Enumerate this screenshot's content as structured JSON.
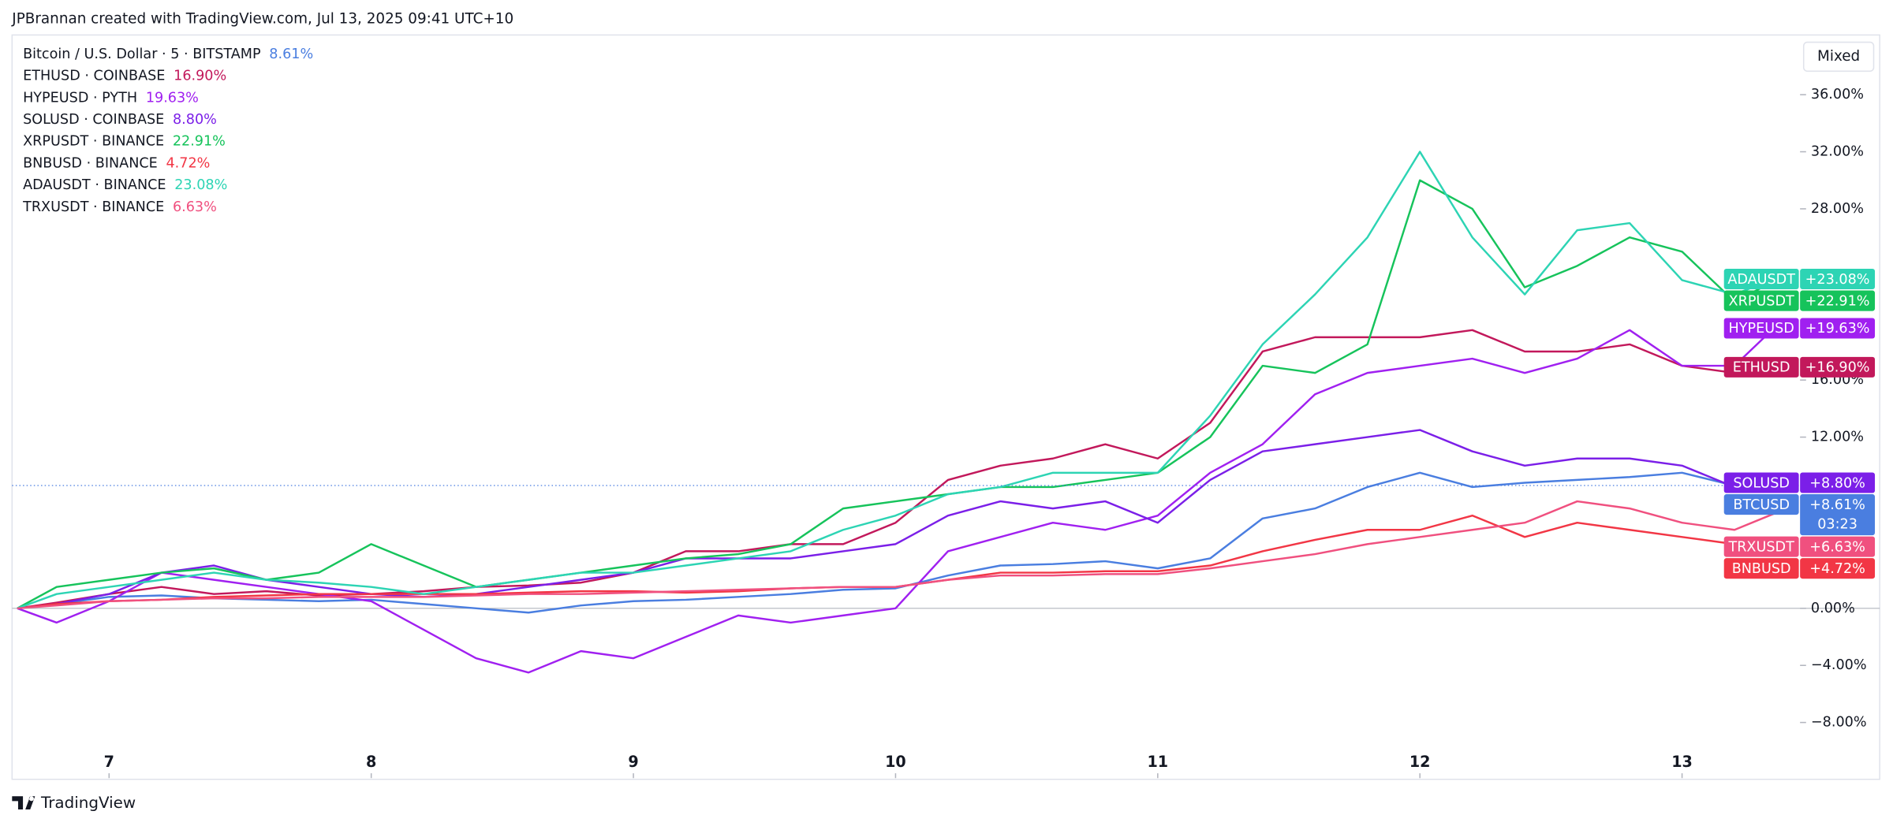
{
  "header": "JPBrannan created with TradingView.com, Jul 13, 2025 09:41 UTC+10",
  "scale_button": "Mixed",
  "brand": "TradingView",
  "chart_data": {
    "type": "line",
    "x": [
      6.65,
      6.8,
      7.0,
      7.2,
      7.4,
      7.6,
      7.8,
      8.0,
      8.2,
      8.4,
      8.6,
      8.8,
      9.0,
      9.2,
      9.4,
      9.6,
      9.8,
      10.0,
      10.2,
      10.4,
      10.6,
      10.8,
      11.0,
      11.2,
      11.4,
      11.6,
      11.8,
      12.0,
      12.2,
      12.4,
      12.6,
      12.8,
      13.0,
      13.2,
      13.35
    ],
    "xlim": [
      6.63,
      13.45
    ],
    "xticks": [
      7,
      8,
      9,
      10,
      11,
      12,
      13
    ],
    "ylim": [
      -11.9,
      40.1
    ],
    "yticks": [
      {
        "value": -8,
        "label": "−8.00%"
      },
      {
        "value": -4,
        "label": "−4.00%"
      },
      {
        "value": 0,
        "label": "0.00%"
      },
      {
        "value": 12,
        "label": "12.00%"
      },
      {
        "value": 16,
        "label": "16.00%"
      },
      {
        "value": 28,
        "label": "28.00%"
      },
      {
        "value": 32,
        "label": "32.00%"
      },
      {
        "value": 36,
        "label": "36.00%"
      }
    ],
    "series": [
      {
        "name": "Bitcoin / U.S. Dollar · 5 · BITSTAMP",
        "ticker": "BTCUSD",
        "color": "#4a7ee0",
        "change": 8.61,
        "change_label": "8.61%",
        "badge_label": "+8.61%",
        "countdown": "03:23",
        "values": [
          0,
          0.3,
          0.8,
          0.9,
          0.7,
          0.6,
          0.5,
          0.6,
          0.3,
          0,
          -0.3,
          0.2,
          0.5,
          0.6,
          0.8,
          1.0,
          1.3,
          1.4,
          2.3,
          3.0,
          3.1,
          3.3,
          2.8,
          3.5,
          6.3,
          7.0,
          8.5,
          9.5,
          8.5,
          8.8,
          9.0,
          9.2,
          9.5,
          8.6,
          8.61
        ]
      },
      {
        "name": "ETHUSD · COINBASE",
        "ticker": "ETHUSD",
        "color": "#c2185b",
        "change": 16.9,
        "change_label": "16.90%",
        "badge_label": "+16.90%",
        "values": [
          0,
          0.4,
          1.0,
          1.5,
          1.0,
          1.2,
          0.9,
          1.0,
          1.2,
          1.5,
          1.6,
          1.8,
          2.5,
          4.0,
          4.0,
          4.5,
          4.5,
          6.0,
          9.0,
          10.0,
          10.5,
          11.5,
          10.5,
          13.0,
          18.0,
          19.0,
          19.0,
          19.0,
          19.5,
          18.0,
          18.0,
          18.5,
          17.0,
          16.5,
          16.9
        ]
      },
      {
        "name": "HYPEUSD · PYTH",
        "ticker": "HYPEUSD",
        "color": "#a020f0",
        "change": 19.63,
        "change_label": "19.63%",
        "badge_label": "+19.63%",
        "values": [
          0,
          -1.0,
          0.5,
          2.5,
          2.0,
          1.5,
          1.0,
          0.5,
          -1.5,
          -3.5,
          -4.5,
          -3.0,
          -3.5,
          -2.0,
          -0.5,
          -1.0,
          -0.5,
          0,
          4.0,
          5.0,
          6.0,
          5.5,
          6.5,
          9.5,
          11.5,
          15.0,
          16.5,
          17.0,
          17.5,
          16.5,
          17.5,
          19.5,
          17.0,
          17.0,
          19.63
        ]
      },
      {
        "name": "SOLUSD · COINBASE",
        "ticker": "SOLUSD",
        "color": "#7b1fe8",
        "change": 8.8,
        "change_label": "8.80%",
        "badge_label": "+8.80%",
        "values": [
          0,
          0.3,
          1.0,
          2.5,
          3.0,
          2.0,
          1.5,
          1.0,
          0.8,
          1.0,
          1.5,
          2.0,
          2.5,
          3.5,
          3.5,
          3.5,
          4.0,
          4.5,
          6.5,
          7.5,
          7.0,
          7.5,
          6.0,
          9.0,
          11.0,
          11.5,
          12.0,
          12.5,
          11.0,
          10.0,
          10.5,
          10.5,
          10.0,
          8.5,
          8.8
        ]
      },
      {
        "name": "XRPUSDT · BINANCE",
        "ticker": "XRPUSDT",
        "color": "#16c35b",
        "change": 22.91,
        "change_label": "22.91%",
        "badge_label": "+22.91%",
        "values": [
          0,
          1.5,
          2.0,
          2.5,
          2.8,
          2.0,
          2.5,
          4.5,
          3.0,
          1.5,
          2.0,
          2.5,
          3.0,
          3.5,
          3.8,
          4.5,
          7.0,
          7.5,
          8.0,
          8.5,
          8.5,
          9.0,
          9.5,
          12.0,
          17.0,
          16.5,
          18.5,
          30.0,
          28.0,
          22.5,
          24.0,
          26.0,
          25.0,
          21.5,
          22.91
        ]
      },
      {
        "name": "BNBUSD · BINANCE",
        "ticker": "BNBUSD",
        "color": "#f23645",
        "change": 4.72,
        "change_label": "4.72%",
        "badge_label": "+4.72%",
        "values": [
          0,
          0.3,
          0.5,
          0.6,
          0.8,
          0.9,
          1.0,
          1.0,
          1.0,
          1.0,
          1.1,
          1.2,
          1.2,
          1.1,
          1.2,
          1.4,
          1.5,
          1.5,
          2.0,
          2.5,
          2.5,
          2.6,
          2.6,
          3.0,
          4.0,
          4.8,
          5.5,
          5.5,
          6.5,
          5.0,
          6.0,
          5.5,
          5.0,
          4.5,
          4.72
        ]
      },
      {
        "name": "ADAUSDT · BINANCE",
        "ticker": "ADAUSDT",
        "color": "#2dd4b4",
        "change": 23.08,
        "change_label": "23.08%",
        "badge_label": "+23.08%",
        "values": [
          0,
          1.0,
          1.5,
          2.0,
          2.5,
          2.0,
          1.8,
          1.5,
          1.0,
          1.5,
          2.0,
          2.5,
          2.5,
          3.0,
          3.5,
          4.0,
          5.5,
          6.5,
          8.0,
          8.5,
          9.5,
          9.5,
          9.5,
          13.5,
          18.5,
          22.0,
          26.0,
          32.0,
          26.0,
          22.0,
          26.5,
          27.0,
          23.0,
          22.0,
          23.08
        ]
      },
      {
        "name": "TRXUSDT · BINANCE",
        "ticker": "TRXUSDT",
        "color": "#f0507f",
        "change": 6.63,
        "change_label": "6.63%",
        "badge_label": "+6.63%",
        "values": [
          0,
          0.2,
          0.5,
          0.6,
          0.7,
          0.7,
          0.8,
          0.8,
          0.8,
          0.9,
          1.0,
          1.0,
          1.1,
          1.2,
          1.3,
          1.4,
          1.5,
          1.5,
          2.0,
          2.3,
          2.3,
          2.4,
          2.4,
          2.8,
          3.3,
          3.8,
          4.5,
          5.0,
          5.5,
          6.0,
          7.5,
          7.0,
          6.0,
          5.5,
          6.63
        ]
      }
    ]
  }
}
